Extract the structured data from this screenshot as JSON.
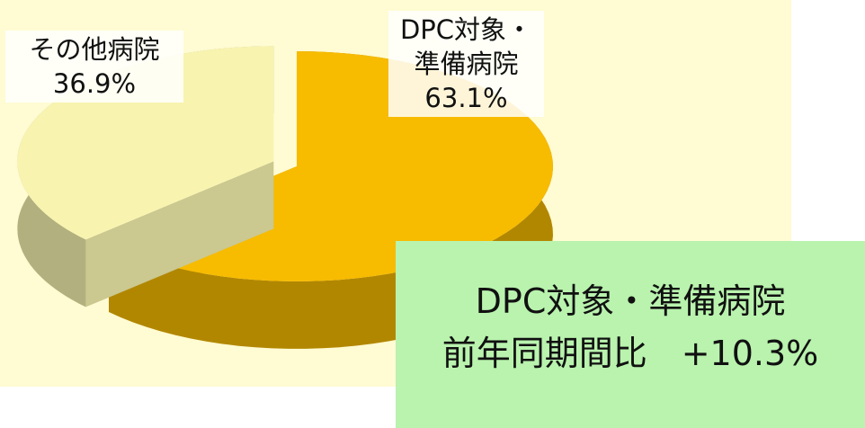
{
  "chart_data": {
    "type": "pie",
    "categories": [
      "DPC対象・準備病院",
      "その他病院"
    ],
    "values": [
      63.1,
      36.9
    ],
    "value_labels": [
      "63.1%",
      "36.9%"
    ],
    "colors": [
      "#f7bb00",
      "#f8f4b0"
    ],
    "annotations": [
      "DPC対象・準備病院",
      "前年同期間比　+10.3%"
    ]
  }
}
